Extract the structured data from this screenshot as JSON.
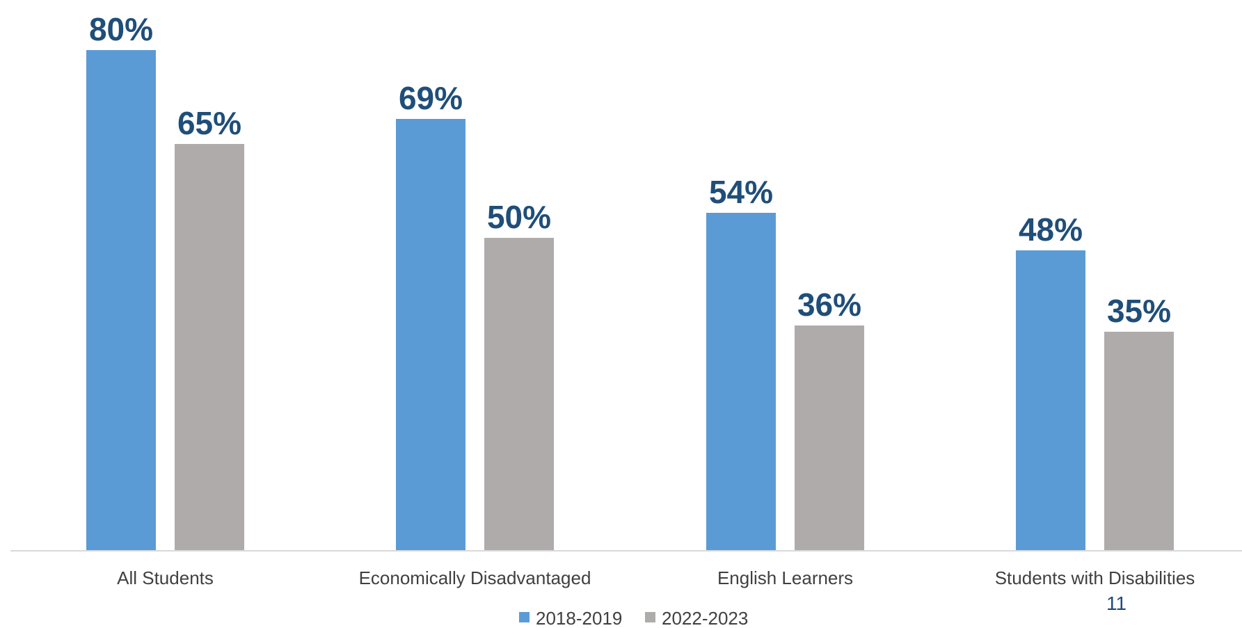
{
  "chart_data": {
    "type": "bar",
    "title": "",
    "xlabel": "",
    "ylabel": "",
    "ylim": [
      0,
      80
    ],
    "grid": false,
    "legend_position": "bottom",
    "categories": [
      "All Students",
      "Economically Disadvantaged",
      "English Learners",
      "Students with Disabilities"
    ],
    "series": [
      {
        "name": "2018-2019",
        "color": "#5b9bd5",
        "values": [
          80,
          69,
          54,
          48
        ]
      },
      {
        "name": "2022-2023",
        "color": "#afabab",
        "values": [
          65,
          50,
          36,
          35
        ]
      }
    ],
    "value_label_color": "#1f4e79",
    "value_format_suffix": "%"
  },
  "page": {
    "number": "11"
  }
}
